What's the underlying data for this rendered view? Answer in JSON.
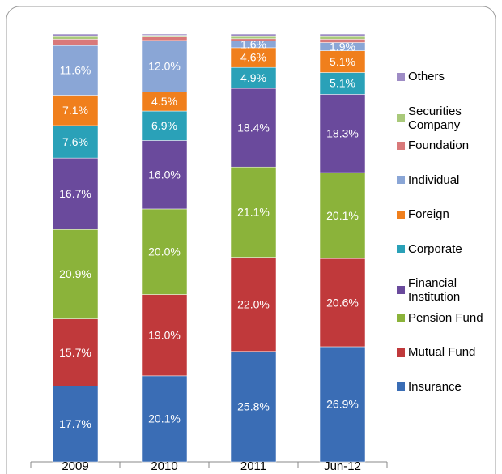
{
  "chart_data": {
    "type": "stacked_bar_percent",
    "categories": [
      "2009",
      "2010",
      "2011",
      "Jun-12"
    ],
    "ylim": [
      0,
      100
    ],
    "series": [
      {
        "name": "Insurance",
        "color": "#3a6db5",
        "values": [
          17.7,
          20.1,
          25.8,
          26.9
        ],
        "value_labels": [
          "17.7%",
          "20.1%",
          "25.8%",
          "26.9%"
        ]
      },
      {
        "name": "Mutual Fund",
        "color": "#c0393b",
        "values": [
          15.7,
          19.0,
          22.0,
          20.6
        ],
        "value_labels": [
          "15.7%",
          "19.0%",
          "22.0%",
          "20.6%"
        ]
      },
      {
        "name": "Pension Fund",
        "color": "#8bb33a",
        "values": [
          20.9,
          20.0,
          21.1,
          20.1
        ],
        "value_labels": [
          "20.9%",
          "20.0%",
          "21.1%",
          "20.1%"
        ]
      },
      {
        "name": "Financial Institution",
        "color": "#6a4a9c",
        "values": [
          16.7,
          16.0,
          18.4,
          18.3
        ],
        "value_labels": [
          "16.7%",
          "16.0%",
          "18.4%",
          "18.3%"
        ]
      },
      {
        "name": "Corporate",
        "color": "#2aa1b8",
        "values": [
          7.6,
          6.9,
          4.9,
          5.1
        ],
        "value_labels": [
          "7.6%",
          "6.9%",
          "4.9%",
          "5.1%"
        ]
      },
      {
        "name": "Foreign",
        "color": "#f07f1c",
        "values": [
          7.1,
          4.5,
          4.6,
          5.1
        ],
        "value_labels": [
          "7.1%",
          "4.5%",
          "4.6%",
          "5.1%"
        ]
      },
      {
        "name": "Individual",
        "color": "#8aa6d6",
        "values": [
          11.6,
          12.0,
          1.6,
          1.9
        ],
        "value_labels": [
          "11.6%",
          "12.0%",
          "1.6%",
          "1.9%"
        ]
      },
      {
        "name": "Foundation",
        "color": "#d9797a",
        "values": [
          1.5,
          0.8,
          0.5,
          0.8
        ],
        "value_labels": [
          null,
          null,
          null,
          null
        ]
      },
      {
        "name": "Securities Company",
        "color": "#a9c97a",
        "values": [
          0.6,
          0.4,
          0.5,
          0.6
        ],
        "value_labels": [
          null,
          null,
          null,
          null
        ]
      },
      {
        "name": "Others",
        "color": "#9e8cc5",
        "values": [
          0.6,
          0.3,
          0.6,
          0.6
        ],
        "value_labels": [
          null,
          null,
          null,
          null
        ]
      }
    ]
  }
}
